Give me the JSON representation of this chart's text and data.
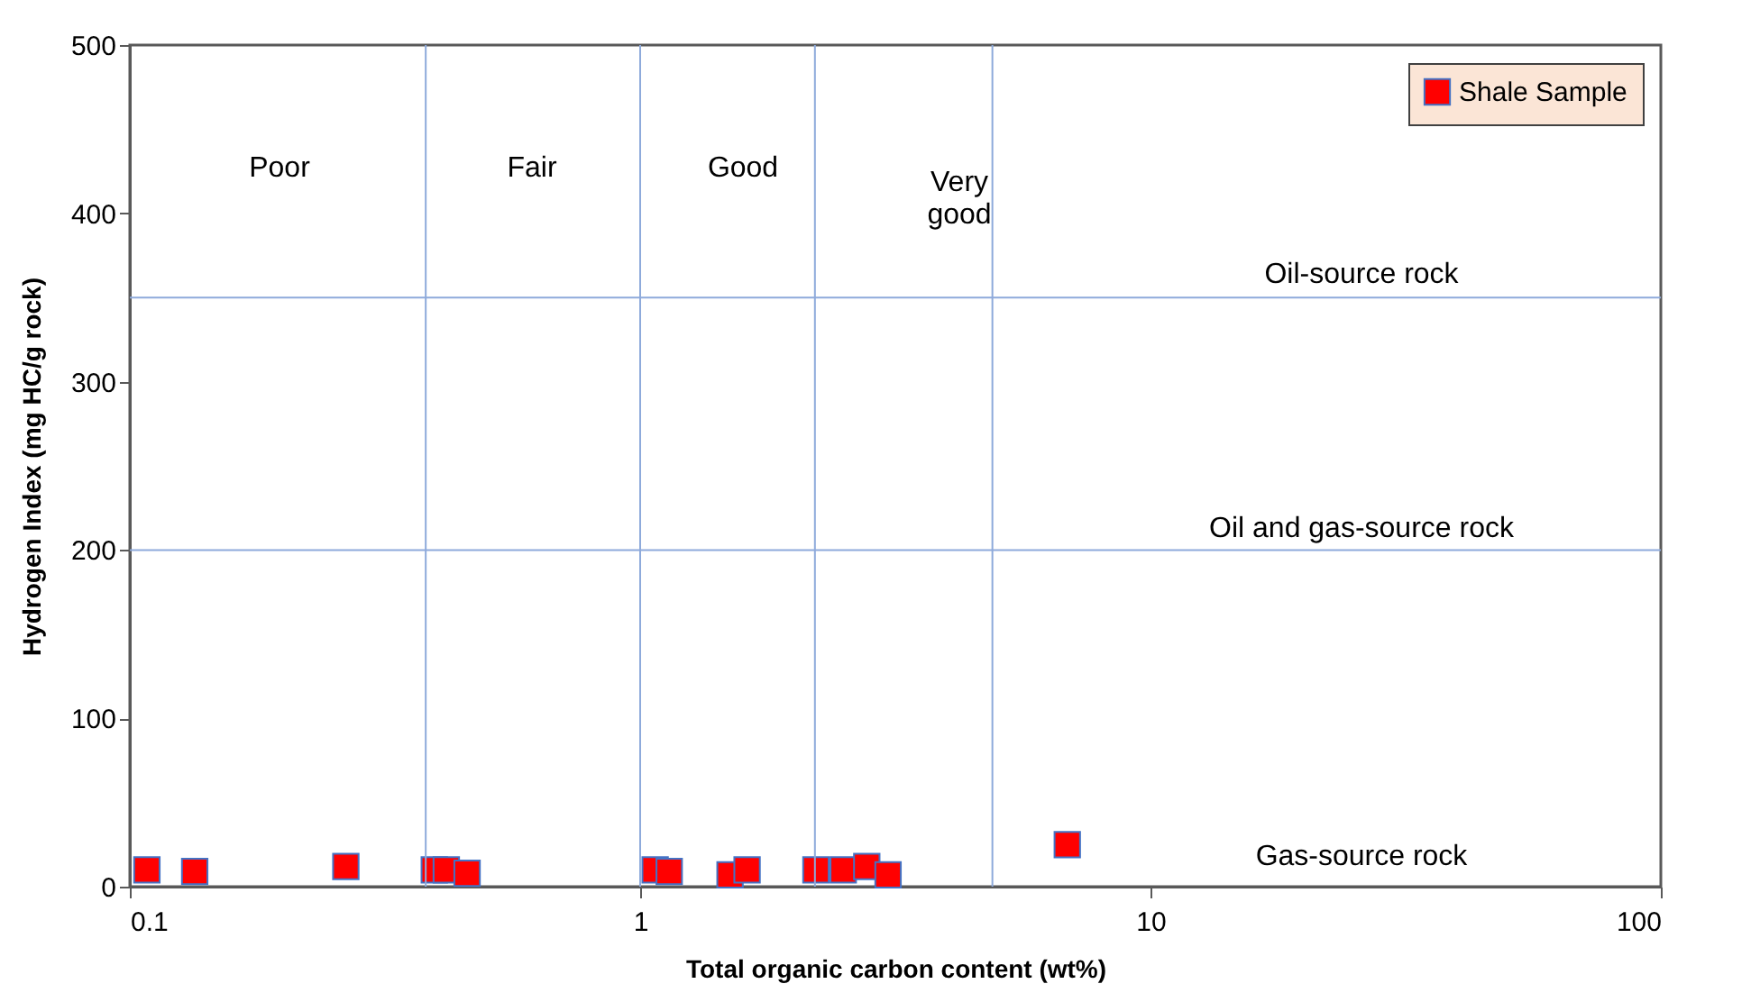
{
  "chart_data": {
    "type": "scatter",
    "xlabel": "Total organic carbon content (wt%)",
    "ylabel": "Hydrogen Index (mg HC/g rock)",
    "log": "x",
    "xlim": [
      0.1,
      100
    ],
    "xticks": [
      0.1,
      1,
      10,
      100
    ],
    "ylim": [
      0,
      500
    ],
    "yticks": [
      0,
      100,
      200,
      300,
      400,
      500
    ],
    "grid": false,
    "legend": "top right",
    "marker": "square",
    "series": [
      {
        "name": "Shale Sample",
        "color": "#ff0000",
        "x": [
          0.108,
          0.134,
          0.265,
          0.395,
          0.417,
          0.458,
          1.07,
          1.14,
          1.5,
          1.62,
          2.21,
          2.5,
          2.78,
          3.06,
          6.87
        ],
        "values": [
          10,
          9,
          12,
          10,
          10,
          8,
          10,
          9,
          7,
          10,
          10,
          10,
          12,
          7,
          25
        ]
      }
    ],
    "ref_lines": [
      {
        "axis": "x",
        "value": 0.38,
        "color": "#8eaadb"
      },
      {
        "axis": "x",
        "value": 1,
        "color": "#8eaadb"
      },
      {
        "axis": "x",
        "value": 2.2,
        "color": "#8eaadb"
      },
      {
        "axis": "x",
        "value": 4.9,
        "color": "#8eaadb"
      },
      {
        "axis": "y",
        "value": 350,
        "color": "#8eaadb"
      },
      {
        "axis": "y",
        "value": 200,
        "color": "#8eaadb"
      }
    ],
    "annotations": [
      "Poor",
      "Fair",
      "Good",
      "Very good",
      "Oil-source rock",
      "Oil and gas-source rock",
      "Gas-source rock"
    ]
  }
}
